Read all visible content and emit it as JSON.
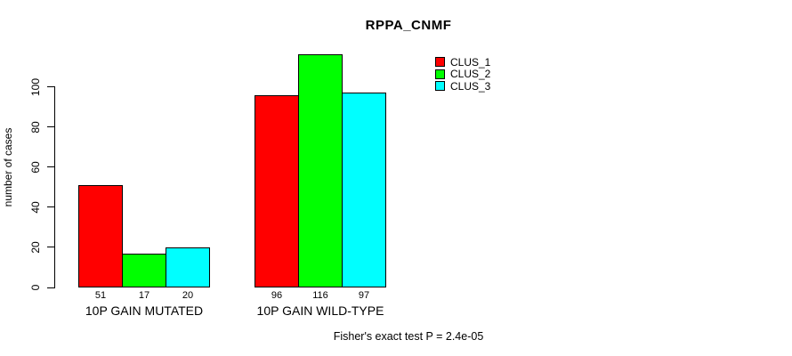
{
  "chart_data": {
    "type": "bar",
    "title": "RPPA_CNMF",
    "ylabel": "number of cases",
    "xlabel": "",
    "categories": [
      "10P GAIN MUTATED",
      "10P GAIN WILD-TYPE"
    ],
    "series": [
      {
        "name": "CLUS_1",
        "color": "#FF0000",
        "values": [
          51,
          96
        ]
      },
      {
        "name": "CLUS_2",
        "color": "#00FF00",
        "values": [
          17,
          116
        ]
      },
      {
        "name": "CLUS_3",
        "color": "#00FFFF",
        "values": [
          20,
          97
        ]
      }
    ],
    "yticks": [
      0,
      20,
      40,
      60,
      80,
      100
    ],
    "ylim": [
      0,
      120
    ],
    "grid": false,
    "bar_value_labels_shown": true,
    "legend_position": "top-right",
    "annotation": "Fisher's exact test P = 2.4e-05"
  }
}
